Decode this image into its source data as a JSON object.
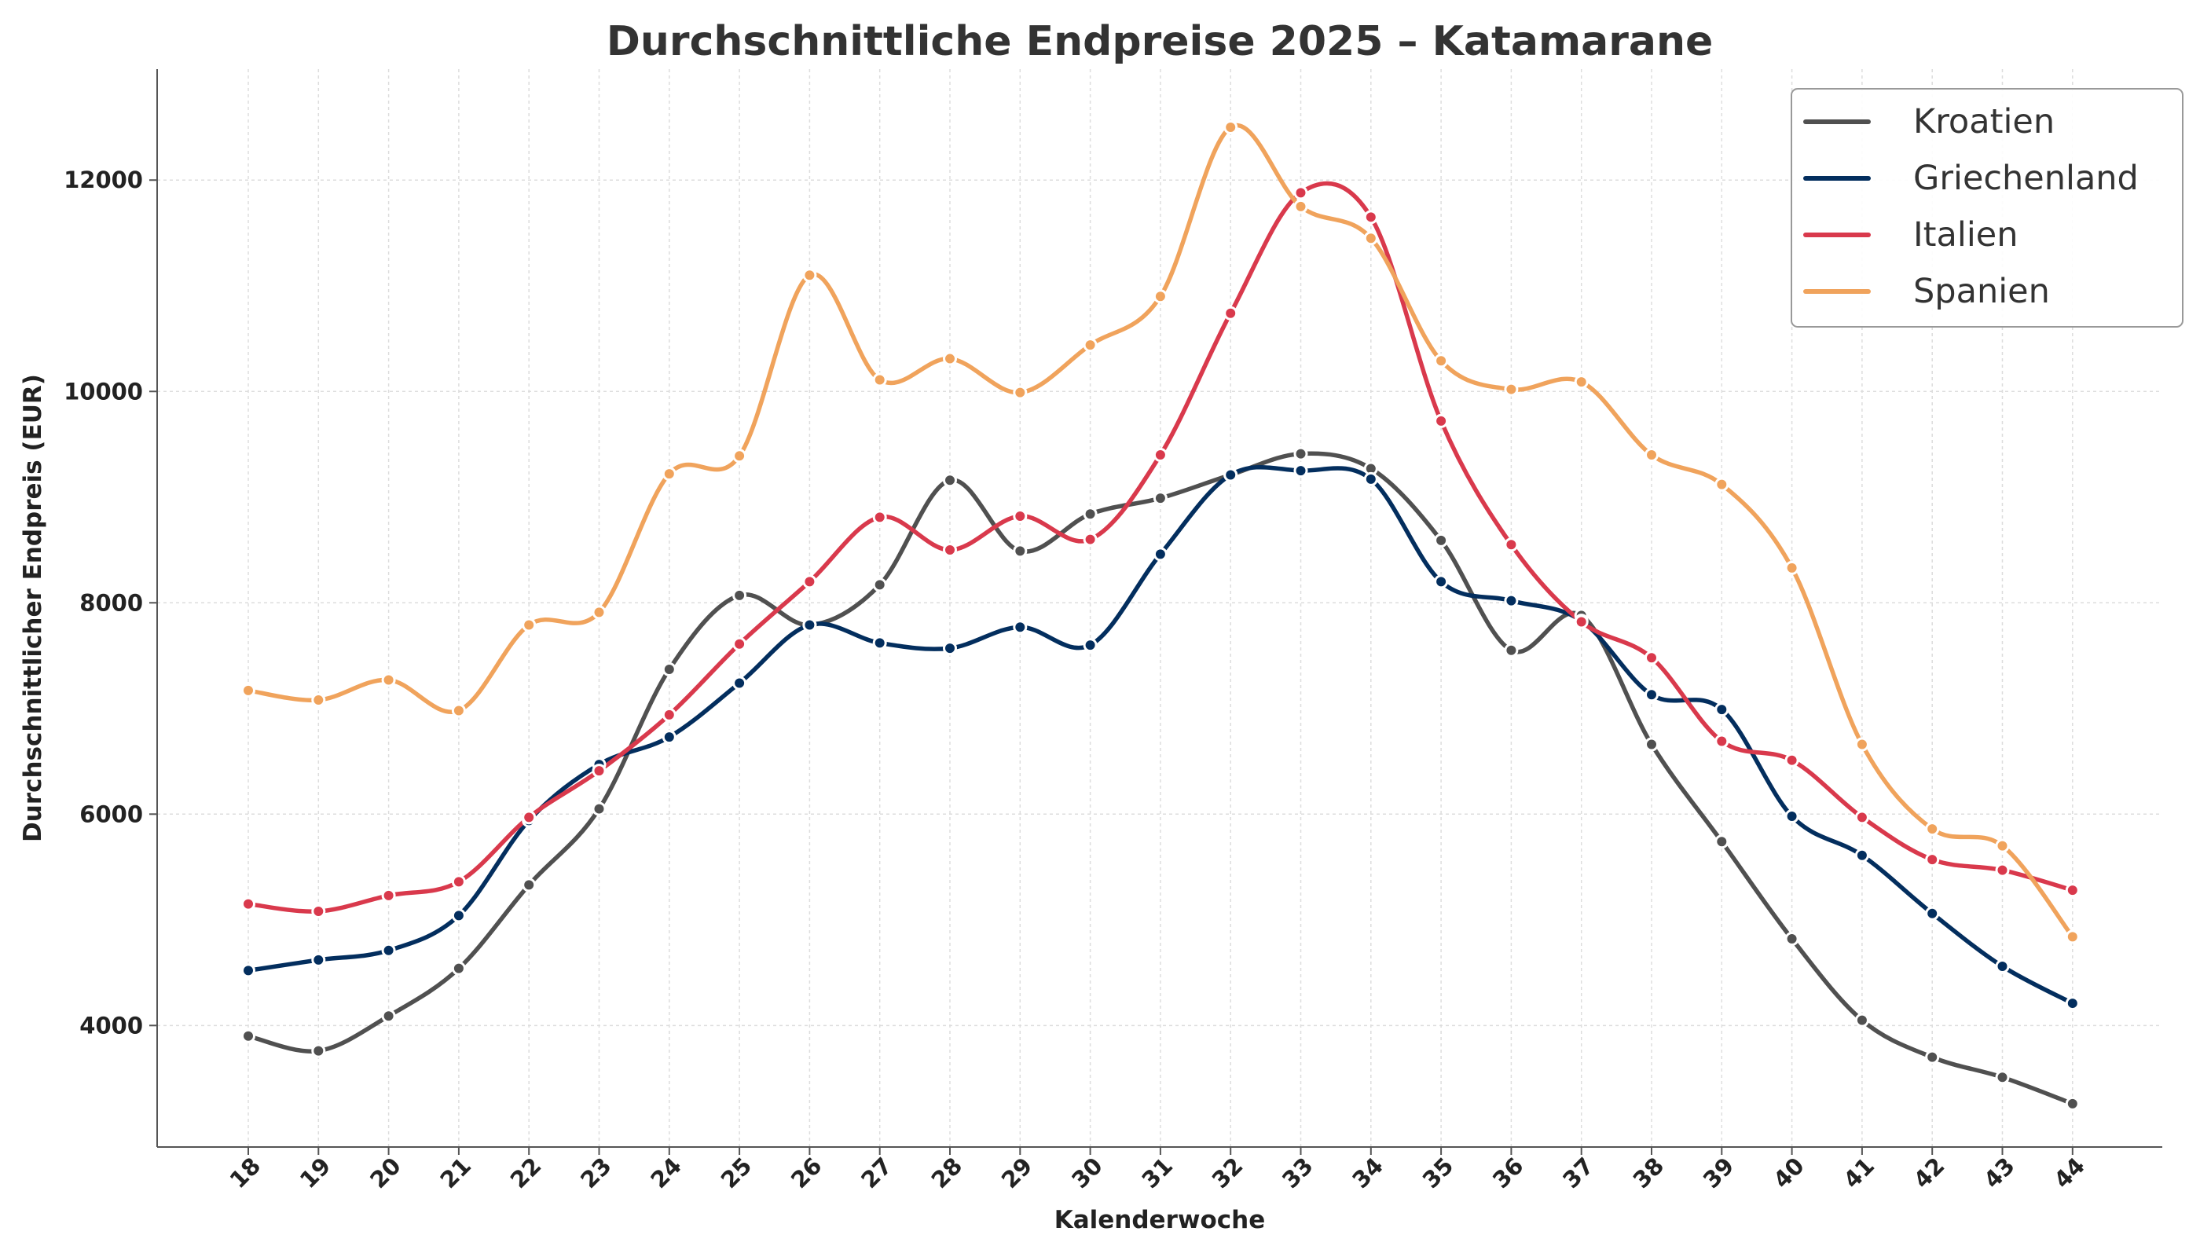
{
  "chart_data": {
    "type": "line",
    "title": "Durchschnittliche Endpreise 2025 – Katamarane",
    "xlabel": "Kalenderwoche",
    "ylabel": "Durchschnittlicher Endpreis (EUR)",
    "x": [
      "18",
      "19",
      "20",
      "21",
      "22",
      "23",
      "24",
      "25",
      "26",
      "27",
      "28",
      "29",
      "30",
      "31",
      "32",
      "33",
      "34",
      "35",
      "36",
      "37",
      "38",
      "39",
      "40",
      "41",
      "42",
      "43",
      "44"
    ],
    "yticks": [
      4000,
      6000,
      8000,
      10000,
      12000
    ],
    "ylim": [
      2850,
      13050
    ],
    "grid": true,
    "legend_position": "top-right",
    "series": [
      {
        "name": "Kroatien",
        "color": "#505050",
        "values": [
          3900,
          3760,
          4090,
          4540,
          5330,
          6050,
          7370,
          8070,
          7790,
          8170,
          9160,
          8490,
          8840,
          8990,
          9210,
          9410,
          9270,
          8590,
          7550,
          7880,
          6660,
          5740,
          4820,
          4050,
          3700,
          3510,
          3260
        ]
      },
      {
        "name": "Griechenland",
        "color": "#032e5e",
        "values": [
          4520,
          4620,
          4710,
          5040,
          5940,
          6470,
          6730,
          7240,
          7790,
          7620,
          7570,
          7770,
          7600,
          8460,
          9210,
          9250,
          9170,
          8200,
          8020,
          7830,
          7130,
          6990,
          5980,
          5610,
          5060,
          4560,
          4210
        ]
      },
      {
        "name": "Italien",
        "color": "#d9394c",
        "values": [
          5150,
          5080,
          5230,
          5360,
          5970,
          6410,
          6940,
          7610,
          8200,
          8810,
          8500,
          8820,
          8600,
          9400,
          10740,
          11880,
          11650,
          9720,
          8550,
          7820,
          7480,
          6690,
          6510,
          5970,
          5570,
          5470,
          5280
        ]
      },
      {
        "name": "Spanien",
        "color": "#f0a35c",
        "values": [
          7170,
          7080,
          7270,
          6980,
          7790,
          7910,
          9220,
          9390,
          11100,
          10110,
          10310,
          9990,
          10440,
          10900,
          12500,
          11750,
          11450,
          10290,
          10020,
          10090,
          9400,
          9120,
          8330,
          6660,
          5860,
          5700,
          4840
        ]
      }
    ]
  }
}
